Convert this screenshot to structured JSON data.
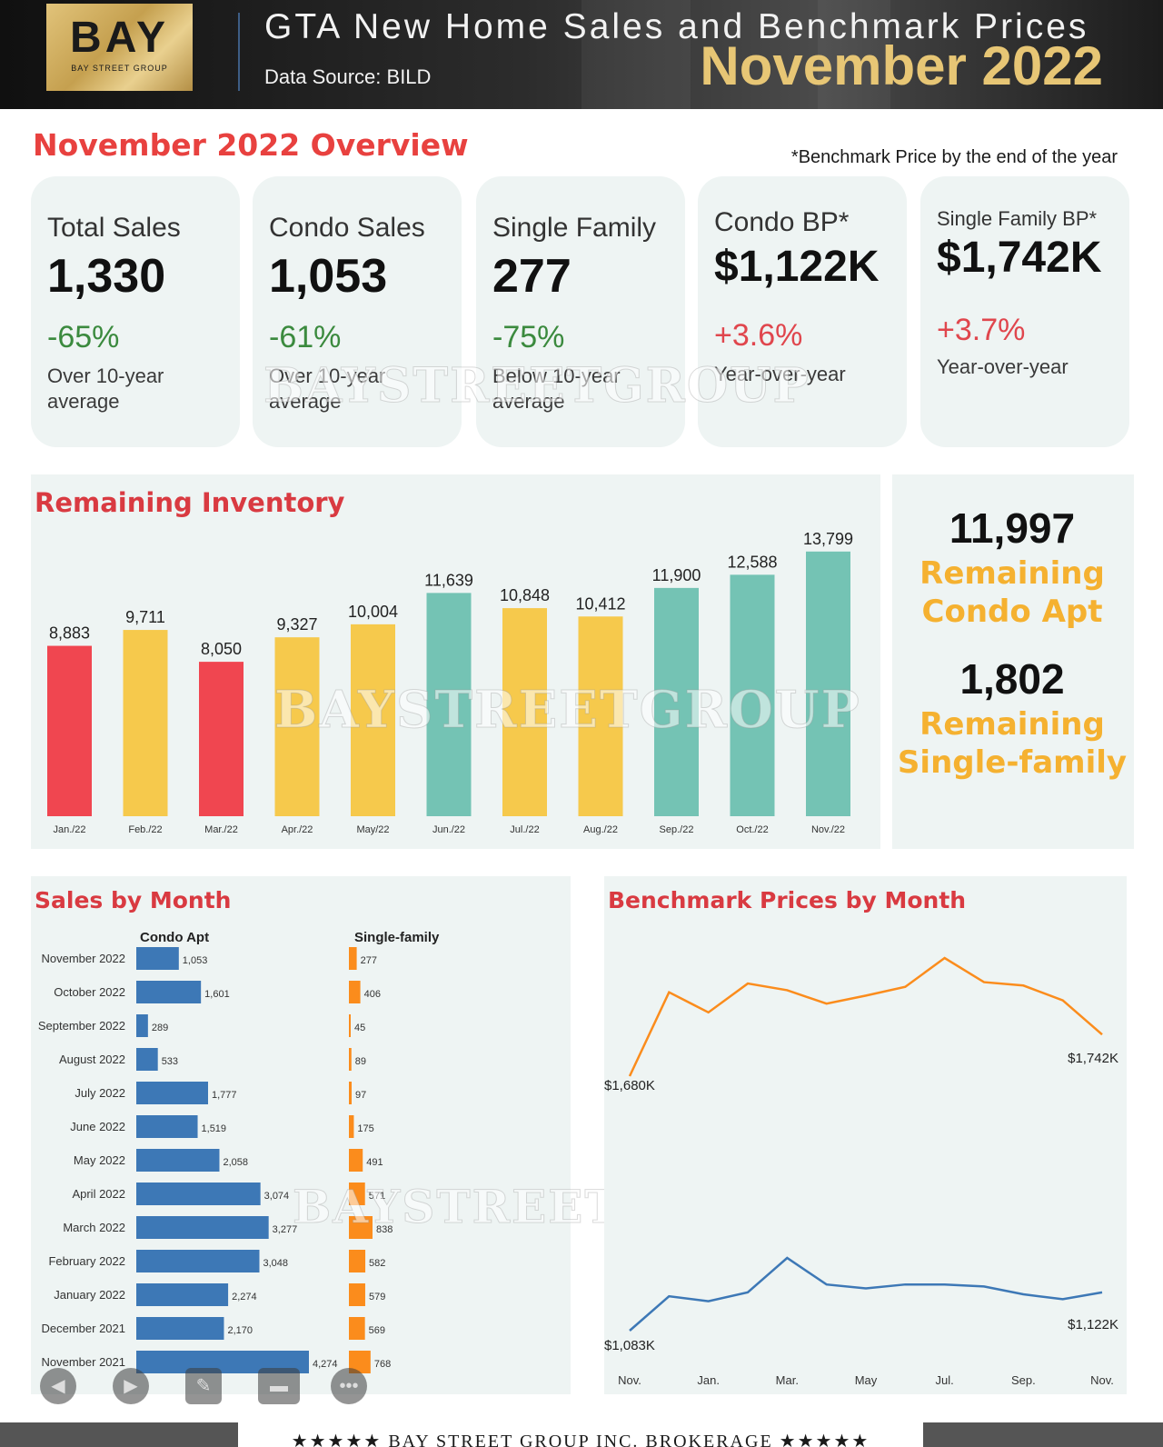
{
  "header": {
    "logo_text": "BAY",
    "logo_sub": "BAY STREET GROUP",
    "title": "GTA New Home Sales and Benchmark Prices",
    "source": "Data Source: BILD",
    "month": "November 2022"
  },
  "overview": {
    "title": "November 2022 Overview",
    "note": "*Benchmark Price by the end of the year",
    "cards": [
      {
        "label": "Total Sales",
        "value": "1,330",
        "change": "-65%",
        "desc": "Over 10-year average",
        "trend": "down"
      },
      {
        "label": "Condo Sales",
        "value": "1,053",
        "change": "-61%",
        "desc": "Over 10-year average",
        "trend": "down"
      },
      {
        "label": "Single Family",
        "value": "277",
        "change": "-75%",
        "desc": "Below 10-year average",
        "trend": "down"
      },
      {
        "label": "Condo BP*",
        "value": "$1,122K",
        "change": "+3.6%",
        "desc": "Year-over-year",
        "trend": "up"
      },
      {
        "label": "Single Family BP*",
        "value": "$1,742K",
        "change": "+3.7%",
        "desc": "Year-over-year",
        "trend": "up"
      }
    ]
  },
  "inventory": {
    "title": "Remaining Inventory",
    "condo_value": "11,997",
    "condo_label_1": "Remaining",
    "condo_label_2": "Condo Apt",
    "single_value": "1,802",
    "single_label_1": "Remaining",
    "single_label_2": "Single-family"
  },
  "sales": {
    "title": "Sales by Month",
    "condo_header": "Condo Apt",
    "single_header": "Single-family"
  },
  "benchmark": {
    "title": "Benchmark Prices by Month"
  },
  "watermark": "BAYSTREETGROUP",
  "footer": {
    "text": "★★★★★   BAY STREET GROUP INC. BROKERAGE   ★★★★★"
  },
  "colors": {
    "red": "#f04650",
    "yellow": "#f6c94c",
    "teal": "#74c3b4",
    "blue": "#3d78b6",
    "orange": "#fb8c1c"
  },
  "chart_data": [
    {
      "type": "bar",
      "title": "Remaining Inventory",
      "categories": [
        "Jan./22",
        "Feb./22",
        "Mar./22",
        "Apr./22",
        "May/22",
        "Jun./22",
        "Jul./22",
        "Aug./22",
        "Sep./22",
        "Oct./22",
        "Nov./22"
      ],
      "values": [
        8883,
        9711,
        8050,
        9327,
        10004,
        11639,
        10848,
        10412,
        11900,
        12588,
        13799
      ],
      "labels": [
        "8,883",
        "9,711",
        "8,050",
        "9,327",
        "10,004",
        "11,639",
        "10,848",
        "10,412",
        "11,900",
        "12,588",
        "13,799"
      ],
      "bar_colors": [
        "red",
        "yellow",
        "red",
        "yellow",
        "yellow",
        "teal",
        "yellow",
        "yellow",
        "teal",
        "teal",
        "teal"
      ],
      "ylim": [
        0,
        14500
      ]
    },
    {
      "type": "bar",
      "orientation": "horizontal",
      "title": "Sales by Month",
      "categories": [
        "November 2022",
        "October 2022",
        "September 2022",
        "August 2022",
        "July 2022",
        "June 2022",
        "May 2022",
        "April 2022",
        "March 2022",
        "February 2022",
        "January 2022",
        "December 2021",
        "November 2021"
      ],
      "series": [
        {
          "name": "Condo Apt",
          "values": [
            1053,
            1601,
            289,
            533,
            1777,
            1519,
            2058,
            3074,
            3277,
            3048,
            2274,
            2170,
            4274
          ],
          "labels": [
            "1,053",
            "1,601",
            "289",
            "533",
            "1,777",
            "1,519",
            "2,058",
            "3,074",
            "3,277",
            "3,048",
            "2,274",
            "2,170",
            "4,274"
          ]
        },
        {
          "name": "Single-family",
          "values": [
            277,
            406,
            45,
            89,
            97,
            175,
            491,
            571,
            838,
            582,
            579,
            569,
            768
          ],
          "labels": [
            "277",
            "406",
            "45",
            "89",
            "97",
            "175",
            "491",
            "571",
            "838",
            "582",
            "579",
            "569",
            "768"
          ]
        }
      ]
    },
    {
      "type": "line",
      "title": "Benchmark Prices by Month",
      "x_ticks": [
        "Nov.",
        "Jan.",
        "Mar.",
        "May",
        "Jul.",
        "Sep.",
        "Nov."
      ],
      "series": [
        {
          "name": "Single-family",
          "values": [
            1680,
            1805,
            1775,
            1818,
            1808,
            1788,
            1800,
            1813,
            1856,
            1820,
            1815,
            1793,
            1742
          ],
          "start_label": "$1,680K",
          "end_label": "$1,742K"
        },
        {
          "name": "Condo",
          "values": [
            1083,
            1118,
            1113,
            1122,
            1157,
            1130,
            1126,
            1130,
            1130,
            1128,
            1120,
            1115,
            1122
          ],
          "start_label": "$1,083K",
          "end_label": "$1,122K"
        }
      ]
    }
  ]
}
